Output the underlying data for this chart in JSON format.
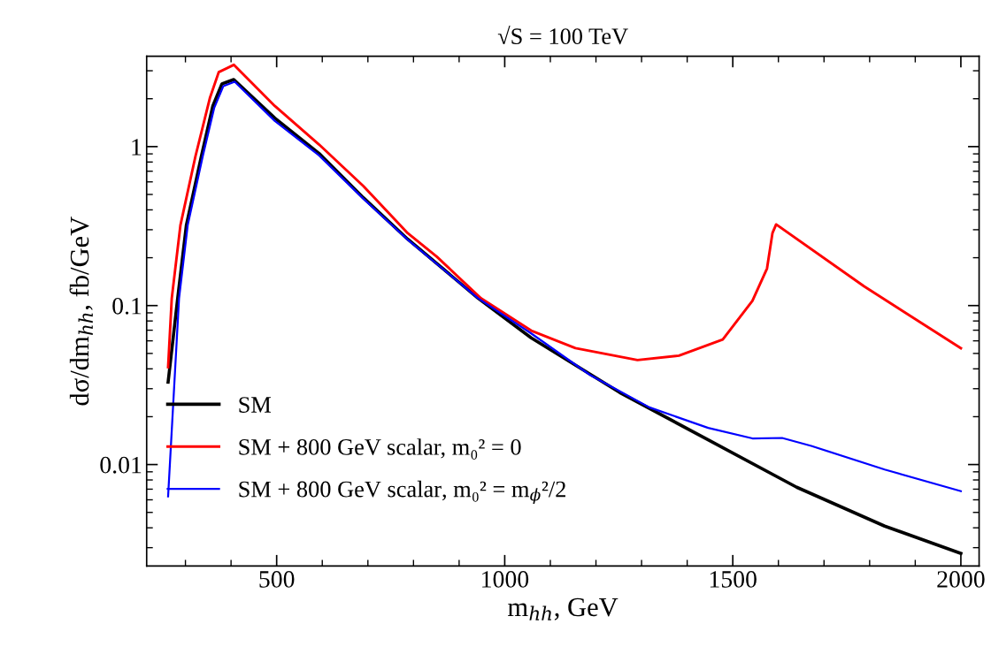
{
  "chart_data": {
    "type": "line",
    "title": "√S = 100 TeV",
    "xlabel": "m$_{hh}$, GeV",
    "ylabel": "dσ/dm$_{hh}$, fb/GeV",
    "log": "y",
    "grid": false,
    "legend": "bottom left",
    "marker": "none",
    "line_style": "solid",
    "xlim": [
      215,
      2040
    ],
    "ylim": [
      0.0023,
      3.7
    ],
    "xticks": [
      {
        "value": 300,
        "label": null
      },
      {
        "value": 400,
        "label": null
      },
      500,
      {
        "value": 600,
        "label": null
      },
      {
        "value": 700,
        "label": null
      },
      {
        "value": 800,
        "label": null
      },
      {
        "value": 900,
        "label": null
      },
      1000,
      {
        "value": 1100,
        "label": null
      },
      {
        "value": 1200,
        "label": null
      },
      {
        "value": 1300,
        "label": null
      },
      {
        "value": 1400,
        "label": null
      },
      1500,
      {
        "value": 1600,
        "label": null
      },
      {
        "value": 1700,
        "label": null
      },
      {
        "value": 1800,
        "label": null
      },
      {
        "value": 1900,
        "label": null
      },
      2000
    ],
    "yticks": [
      {
        "value": 0.003,
        "label": null
      },
      {
        "value": 0.004,
        "label": null
      },
      {
        "value": 0.005,
        "label": null
      },
      {
        "value": 0.006,
        "label": null
      },
      {
        "value": 0.007,
        "label": null
      },
      {
        "value": 0.008,
        "label": null
      },
      {
        "value": 0.009,
        "label": null
      },
      0.01,
      {
        "value": 0.02,
        "label": null
      },
      {
        "value": 0.03,
        "label": null
      },
      {
        "value": 0.04,
        "label": null
      },
      {
        "value": 0.05,
        "label": null
      },
      {
        "value": 0.06,
        "label": null
      },
      {
        "value": 0.07,
        "label": null
      },
      {
        "value": 0.08,
        "label": null
      },
      {
        "value": 0.09,
        "label": null
      },
      0.1,
      {
        "value": 0.2,
        "label": null
      },
      {
        "value": 0.3,
        "label": null
      },
      {
        "value": 0.4,
        "label": null
      },
      {
        "value": 0.5,
        "label": null
      },
      {
        "value": 0.6,
        "label": null
      },
      {
        "value": 0.7,
        "label": null
      },
      {
        "value": 0.8,
        "label": null
      },
      {
        "value": 0.9,
        "label": null
      },
      1,
      {
        "value": 2,
        "label": null
      },
      {
        "value": 3,
        "label": null
      }
    ],
    "series": [
      {
        "name": "SM",
        "color": "#000000",
        "x": [
          262,
          283,
          302,
          335,
          360,
          380,
          406,
          496,
          593,
          690,
          787,
          942,
          1058,
          1252,
          1446,
          1640,
          1833,
          2000
        ],
        "values": [
          0.033,
          0.111,
          0.32,
          0.87,
          1.8,
          2.48,
          2.64,
          1.51,
          0.906,
          0.477,
          0.262,
          0.111,
          0.0627,
          0.0284,
          0.0143,
          0.0072,
          0.0041,
          0.00276
        ]
      },
      {
        "name": "SM + 800 GeV scalar, m₀² = 0",
        "color": "#ff0000",
        "x": [
          262,
          270,
          289,
          322,
          354,
          373,
          406,
          496,
          593,
          690,
          787,
          851,
          948,
          1058,
          1155,
          1291,
          1382,
          1478,
          1543,
          1575,
          1587,
          1595,
          1788,
          2000
        ],
        "values": [
          0.041,
          0.111,
          0.32,
          0.87,
          2.04,
          2.94,
          3.27,
          1.8,
          1.03,
          0.565,
          0.286,
          0.203,
          0.111,
          0.0696,
          0.054,
          0.0454,
          0.0484,
          0.0612,
          0.107,
          0.171,
          0.286,
          0.324,
          0.132,
          0.054
        ]
      },
      {
        "name": "SM + 800 GeV scalar, m₀² = m$_{ϕ}$²/2",
        "color": "#0000ff",
        "x": [
          262,
          286,
          305,
          338,
          363,
          383,
          408,
          496,
          593,
          690,
          787,
          942,
          1058,
          1187,
          1317,
          1446,
          1543,
          1608,
          1672,
          1833,
          2000
        ],
        "values": [
          0.0063,
          0.111,
          0.32,
          0.87,
          1.75,
          2.4,
          2.56,
          1.45,
          0.88,
          0.47,
          0.26,
          0.111,
          0.0668,
          0.0366,
          0.0229,
          0.017,
          0.0146,
          0.0147,
          0.0131,
          0.0093,
          0.0068
        ]
      }
    ]
  }
}
